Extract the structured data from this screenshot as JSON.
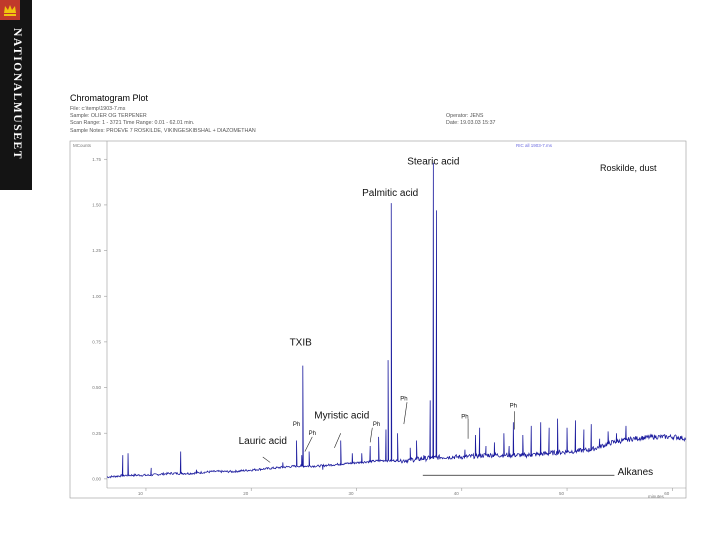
{
  "brand": {
    "name": "NATIONALMUSEET"
  },
  "header": {
    "title": "Chromatogram Plot",
    "file": "File: c:\\temp\\1903-7.ms",
    "sample": "Sample: OLIER OG TERPENER",
    "scan": "Scan Range: 1 - 3721  Time Range: 0.01 - 62.01 min.",
    "notes": "Sample Notes: PROEVE 7 ROSKILDE, VIKINGESKIBSHAL + DIAZOMETHAN",
    "operator": "Operator: JENS",
    "date": "Date: 19.03.03 15:37"
  },
  "chart_data": {
    "type": "line",
    "title": "Roskilde, dust",
    "ylabel": "MCounts",
    "xlabel": "minutes",
    "trace_label": "RIC all 1903-7.ms",
    "xlim": [
      10,
      65
    ],
    "ylim": [
      -0.05,
      1.85
    ],
    "yticks": [
      "0.00",
      "0.25",
      "0.50",
      "0.75",
      "1.00",
      "1.25",
      "1.50",
      "1.75"
    ],
    "xticks": [
      "10",
      "20",
      "30",
      "40",
      "50",
      "60"
    ],
    "xtick_values": [
      13.7,
      23.7,
      33.7,
      43.7,
      53.7,
      63.7
    ],
    "baseline": [
      [
        10,
        0.01
      ],
      [
        12,
        0.02
      ],
      [
        14,
        0.02
      ],
      [
        16,
        0.03
      ],
      [
        18,
        0.03
      ],
      [
        20,
        0.04
      ],
      [
        22,
        0.04
      ],
      [
        24,
        0.05
      ],
      [
        26,
        0.06
      ],
      [
        28,
        0.07
      ],
      [
        30,
        0.07
      ],
      [
        32,
        0.08
      ],
      [
        34,
        0.09
      ],
      [
        36,
        0.1
      ],
      [
        38,
        0.1
      ],
      [
        40,
        0.11
      ],
      [
        42,
        0.12
      ],
      [
        44,
        0.12
      ],
      [
        46,
        0.13
      ],
      [
        48,
        0.13
      ],
      [
        50,
        0.13
      ],
      [
        52,
        0.14
      ],
      [
        54,
        0.15
      ],
      [
        56,
        0.16
      ],
      [
        58,
        0.2
      ],
      [
        60,
        0.22
      ],
      [
        62,
        0.23
      ],
      [
        64,
        0.23
      ],
      [
        65,
        0.22
      ]
    ],
    "peaks": [
      [
        11.5,
        0.13
      ],
      [
        12.0,
        0.14
      ],
      [
        14.2,
        0.06
      ],
      [
        17.0,
        0.15
      ],
      [
        18.5,
        0.05
      ],
      [
        26.7,
        0.09
      ],
      [
        28.0,
        0.21
      ],
      [
        28.5,
        0.13
      ],
      [
        28.6,
        0.62
      ],
      [
        29.2,
        0.15
      ],
      [
        30.5,
        0.05
      ],
      [
        32.2,
        0.21
      ],
      [
        33.3,
        0.14
      ],
      [
        34.2,
        0.14
      ],
      [
        35.0,
        0.18
      ],
      [
        35.8,
        0.23
      ],
      [
        36.5,
        0.27
      ],
      [
        36.7,
        0.65
      ],
      [
        37.0,
        1.51
      ],
      [
        37.6,
        0.25
      ],
      [
        38.8,
        0.17
      ],
      [
        39.4,
        0.21
      ],
      [
        40.1,
        0.13
      ],
      [
        40.7,
        0.43
      ],
      [
        41.0,
        1.73
      ],
      [
        41.3,
        1.47
      ],
      [
        43.0,
        0.12
      ],
      [
        44.0,
        0.16
      ],
      [
        45.0,
        0.24
      ],
      [
        45.4,
        0.28
      ],
      [
        46.0,
        0.18
      ],
      [
        46.8,
        0.2
      ],
      [
        47.7,
        0.25
      ],
      [
        48.2,
        0.18
      ],
      [
        48.6,
        0.31
      ],
      [
        49.5,
        0.24
      ],
      [
        50.3,
        0.29
      ],
      [
        51.2,
        0.31
      ],
      [
        52.0,
        0.28
      ],
      [
        52.8,
        0.33
      ],
      [
        53.7,
        0.28
      ],
      [
        54.5,
        0.32
      ],
      [
        55.3,
        0.27
      ],
      [
        56.0,
        0.3
      ],
      [
        56.8,
        0.22
      ],
      [
        57.6,
        0.26
      ],
      [
        58.4,
        0.25
      ],
      [
        59.3,
        0.29
      ]
    ],
    "annotations": [
      {
        "text": "Stearic acid",
        "x": 41.0,
        "y": 1.72
      },
      {
        "text": "Palmitic acid",
        "x": 36.9,
        "y": 1.55
      },
      {
        "text": "TXIB",
        "x": 28.4,
        "y": 0.73
      },
      {
        "text": "Myristic acid",
        "x": 32.3,
        "y": 0.33
      },
      {
        "text": "Lauric acid",
        "x": 24.8,
        "y": 0.19
      },
      {
        "text": "Ph",
        "x": 28.0,
        "y": 0.29
      },
      {
        "text": "Ph",
        "x": 29.5,
        "y": 0.24
      },
      {
        "text": "Ph",
        "x": 35.6,
        "y": 0.29
      },
      {
        "text": "Ph",
        "x": 38.2,
        "y": 0.43
      },
      {
        "text": "Ph",
        "x": 44.0,
        "y": 0.33
      },
      {
        "text": "Ph",
        "x": 48.6,
        "y": 0.39
      },
      {
        "text": "Alkanes",
        "x": 58.5,
        "y": 0.02
      }
    ],
    "leader_lines": [
      {
        "from": [
          29.5,
          0.23
        ],
        "to": [
          28.8,
          0.15
        ]
      },
      {
        "from": [
          32.2,
          0.25
        ],
        "to": [
          31.6,
          0.17
        ]
      },
      {
        "from": [
          35.2,
          0.28
        ],
        "to": [
          35.0,
          0.2
        ]
      },
      {
        "from": [
          38.5,
          0.42
        ],
        "to": [
          38.2,
          0.3
        ]
      },
      {
        "from": [
          44.3,
          0.33
        ],
        "to": [
          44.3,
          0.22
        ]
      },
      {
        "from": [
          48.7,
          0.37
        ],
        "to": [
          48.7,
          0.27
        ]
      },
      {
        "from": [
          24.8,
          0.12
        ],
        "to": [
          25.5,
          0.09
        ]
      }
    ],
    "alkanes_range": [
      40.0,
      58.2
    ],
    "alkanes_y": 0.02,
    "line_color": "#1c1c9e"
  }
}
